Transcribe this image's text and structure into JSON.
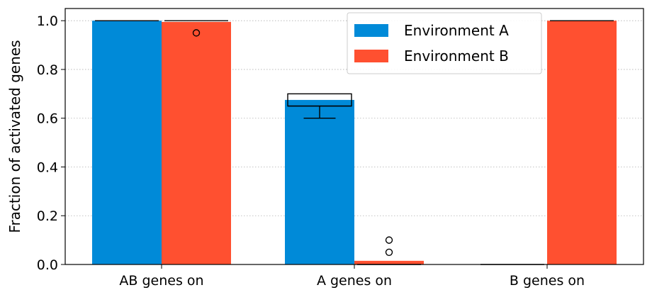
{
  "chart_data": {
    "type": "bar",
    "categories": [
      "AB genes on",
      "A genes on",
      "B genes on"
    ],
    "series": [
      {
        "name": "Environment A",
        "color": "#008ad8",
        "values": [
          1.0,
          0.675,
          0.0
        ],
        "box": [
          {
            "whislo": 1.0,
            "q1": 1.0,
            "med": 1.0,
            "q3": 1.0,
            "whishi": 1.0,
            "fliers": []
          },
          {
            "whislo": 0.6,
            "q1": 0.65,
            "med": 0.65,
            "q3": 0.7,
            "whishi": 0.7,
            "fliers": []
          },
          {
            "whislo": 0.0,
            "q1": 0.0,
            "med": 0.0,
            "q3": 0.0,
            "whishi": 0.0,
            "fliers": []
          }
        ]
      },
      {
        "name": "Environment B",
        "color": "#ff5030",
        "values": [
          0.995,
          0.015,
          1.0
        ],
        "box": [
          {
            "whislo": 1.0,
            "q1": 1.0,
            "med": 1.0,
            "q3": 1.0,
            "whishi": 1.0,
            "fliers": [
              0.95
            ]
          },
          {
            "whislo": 0.0,
            "q1": 0.0,
            "med": 0.0,
            "q3": 0.0,
            "whishi": 0.0,
            "fliers": [
              0.05,
              0.1
            ]
          },
          {
            "whislo": 1.0,
            "q1": 1.0,
            "med": 1.0,
            "q3": 1.0,
            "whishi": 1.0,
            "fliers": []
          }
        ]
      }
    ],
    "ylabel": "Fraction of activated genes",
    "xlabel": "",
    "ylim": [
      0,
      1.05
    ],
    "yticks": [
      0.0,
      0.2,
      0.4,
      0.6,
      0.8,
      1.0
    ],
    "ytick_labels": [
      "0.0",
      "0.2",
      "0.4",
      "0.6",
      "0.8",
      "1.0"
    ],
    "grid": "y-dotted",
    "legend": "top-center"
  }
}
